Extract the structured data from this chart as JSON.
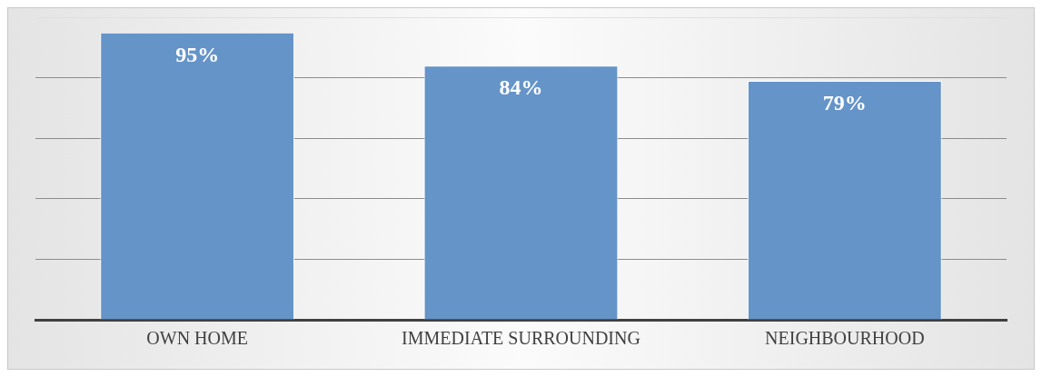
{
  "chart_data": {
    "type": "bar",
    "categories": [
      "OWN HOME",
      "IMMEDIATE SURROUNDING",
      "NEIGHBOURHOOD"
    ],
    "values": [
      95,
      84,
      79
    ],
    "color": "#6594c8",
    "ylim": [
      0,
      100
    ],
    "yticks": [
      {
        "value": 0,
        "label": null
      },
      {
        "value": 20,
        "label": null
      },
      {
        "value": 40,
        "label": null
      },
      {
        "value": 60,
        "label": null
      },
      {
        "value": 80,
        "label": null
      },
      {
        "value": 100,
        "label": null
      }
    ],
    "value_labels": [
      "95%",
      "84%",
      "79%"
    ],
    "grid": "y",
    "tick_labels": "x",
    "legend": false
  }
}
